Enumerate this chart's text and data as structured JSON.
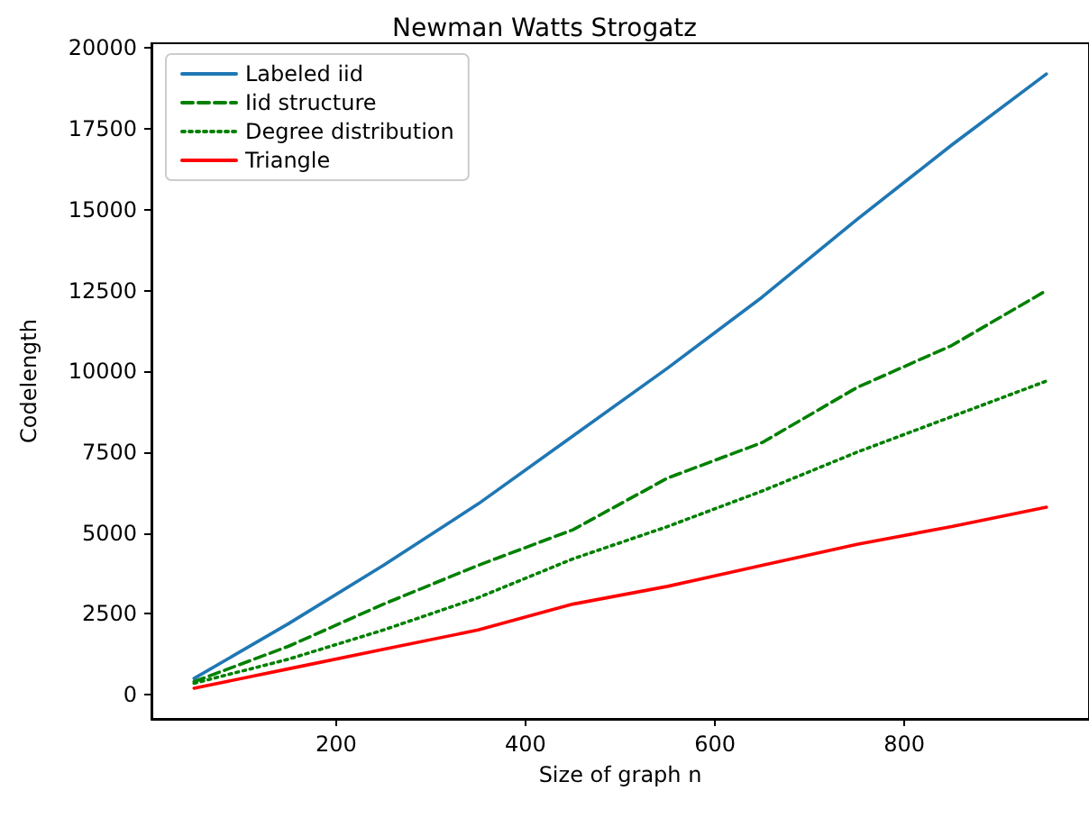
{
  "chart_data": {
    "type": "line",
    "title": "Newman Watts Strogatz",
    "xlabel": "Size of graph n",
    "ylabel": "Codelength",
    "x": [
      50,
      150,
      250,
      350,
      450,
      550,
      650,
      750,
      850,
      950
    ],
    "xlim": [
      5,
      995
    ],
    "xticks": [
      200,
      400,
      600,
      800
    ],
    "ylim": [
      -750,
      20150
    ],
    "yticks": [
      0,
      2500,
      5000,
      7500,
      10000,
      12500,
      15000,
      17500,
      20000
    ],
    "grid": false,
    "legend": "top left",
    "marker": "none",
    "series": [
      {
        "name": "Labeled iid",
        "color": "#1f77b4",
        "line_style": "solid",
        "values": [
          500,
          2200,
          4000,
          5900,
          8000,
          10100,
          12300,
          14700,
          17000,
          19200
        ]
      },
      {
        "name": "Iid structure",
        "color": "#008000",
        "line_style": "dashed",
        "values": [
          400,
          1500,
          2800,
          4000,
          5100,
          6700,
          7800,
          9500,
          10800,
          12500
        ]
      },
      {
        "name": "Degree distribution",
        "color": "#008000",
        "line_style": "dotted",
        "values": [
          350,
          1100,
          2000,
          3000,
          4200,
          5200,
          6300,
          7500,
          8600,
          9700
        ]
      },
      {
        "name": "Triangle",
        "color": "#ff0000",
        "line_style": "solid",
        "values": [
          200,
          800,
          1400,
          2000,
          2800,
          3350,
          4000,
          4650,
          5200,
          5800
        ]
      }
    ]
  }
}
